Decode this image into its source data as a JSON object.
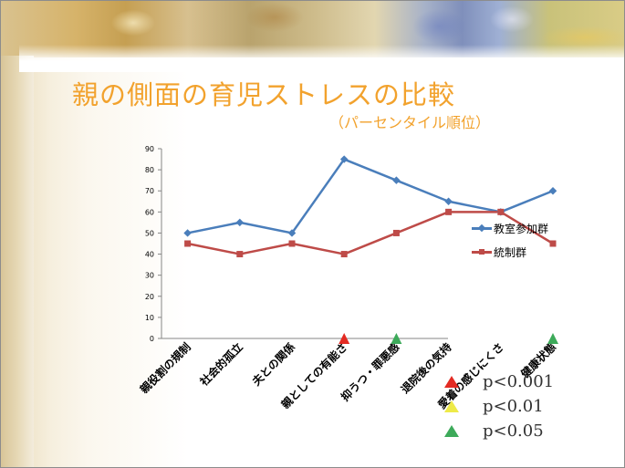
{
  "slide": {
    "title": "親の側面の育児ストレスの比較",
    "subtitle": "（パーセンタイル順位）"
  },
  "chart_data": {
    "type": "line",
    "title": "",
    "xlabel": "",
    "ylabel": "",
    "ylim": [
      0,
      90
    ],
    "yticks": [
      0,
      10,
      20,
      30,
      40,
      50,
      60,
      70,
      80,
      90
    ],
    "grid": false,
    "legend_position": "right",
    "categories": [
      "親役割の規制",
      "社会的孤立",
      "夫との関係",
      "親としての有能さ",
      "抑うつ・罪悪感",
      "退院後の気持",
      "愛着の感じにくさ",
      "健康状態"
    ],
    "series": [
      {
        "name": "教室参加群",
        "values": [
          50,
          55,
          50,
          85,
          75,
          65,
          60,
          70
        ],
        "color": "#4a7ebb",
        "marker": "diamond"
      },
      {
        "name": "統制群",
        "values": [
          45,
          40,
          45,
          40,
          50,
          60,
          60,
          45
        ],
        "color": "#be4b48",
        "marker": "square"
      }
    ],
    "significance_markers": [
      {
        "category": "親としての有能さ",
        "level": "p<0.001"
      },
      {
        "category": "抑うつ・罪悪感",
        "level": "p<0.05"
      },
      {
        "category": "健康状態",
        "level": "p<0.05"
      }
    ]
  },
  "significance_legend": [
    {
      "label": "p<0.001",
      "color": "#e32b23"
    },
    {
      "label": "p<0.01",
      "color": "#eeea48"
    },
    {
      "label": "p<0.05",
      "color": "#3daa5a"
    }
  ]
}
